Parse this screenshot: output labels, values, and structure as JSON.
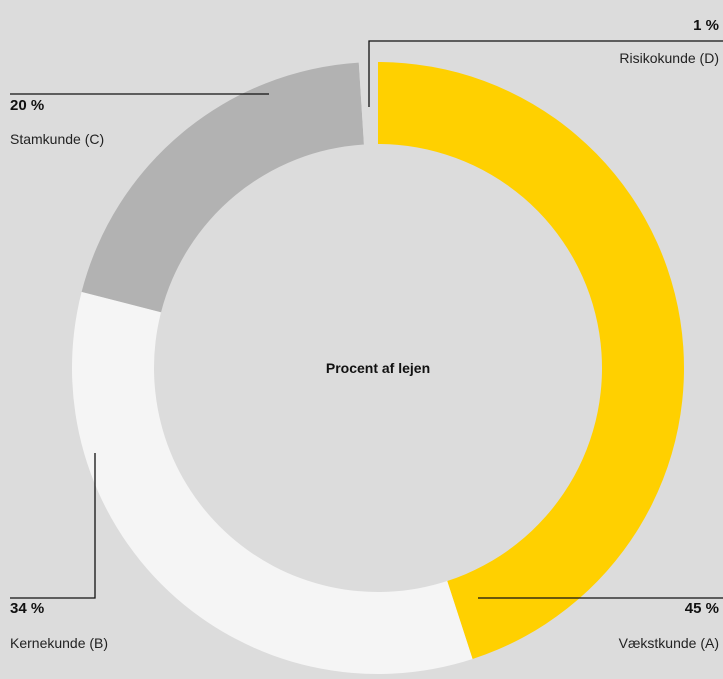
{
  "chart_data": {
    "type": "pie",
    "variant": "donut",
    "center_label": "Procent af lejen",
    "slices": [
      {
        "label": "Vækstkunde (A)",
        "value_label": "45 %",
        "value": 45,
        "color": "#ffd000"
      },
      {
        "label": "Kernekunde (B)",
        "value_label": "34 %",
        "value": 34,
        "color": "#f5f5f5"
      },
      {
        "label": "Stamkunde (C)",
        "value_label": "20 %",
        "value": 20,
        "color": "#b2b2b2"
      },
      {
        "label": "Risikokunde (D)",
        "value_label": "1 %",
        "value": 1,
        "color": "#dcdcdc"
      }
    ]
  }
}
